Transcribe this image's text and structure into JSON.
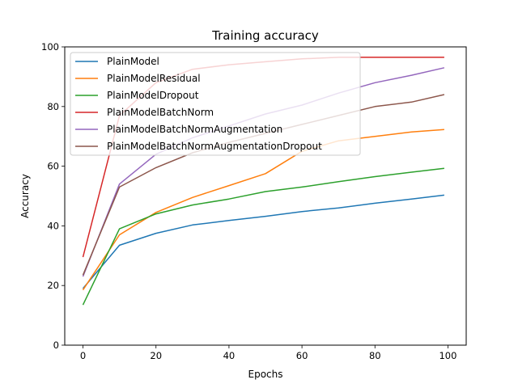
{
  "chart_data": {
    "type": "line",
    "title": "Training accuracy",
    "xlabel": "Epochs",
    "ylabel": "Accuracy",
    "xlim": [
      -5,
      105
    ],
    "ylim": [
      0,
      100
    ],
    "xticks": [
      0,
      20,
      40,
      60,
      80,
      100
    ],
    "yticks": [
      0,
      20,
      40,
      60,
      80,
      100
    ],
    "grid": false,
    "legend_position": "top-left",
    "x": [
      0,
      10,
      20,
      30,
      40,
      50,
      60,
      70,
      80,
      90,
      99
    ],
    "series": [
      {
        "name": "PlainModel",
        "color": "#1f77b4",
        "values": [
          19.0,
          33.5,
          37.5,
          40.3,
          41.8,
          43.2,
          44.8,
          46.0,
          47.6,
          49.0,
          50.3
        ]
      },
      {
        "name": "PlainModelResidual",
        "color": "#ff7f0e",
        "values": [
          18.5,
          37.0,
          44.5,
          49.5,
          53.5,
          57.5,
          65.0,
          68.5,
          70.0,
          71.5,
          72.3
        ]
      },
      {
        "name": "PlainModelDropout",
        "color": "#2ca02c",
        "values": [
          13.5,
          39.0,
          44.0,
          47.0,
          49.0,
          51.5,
          53.0,
          54.8,
          56.5,
          58.0,
          59.3
        ]
      },
      {
        "name": "PlainModelBatchNorm",
        "color": "#d62728",
        "values": [
          29.5,
          77.0,
          88.0,
          92.5,
          94.0,
          95.0,
          96.0,
          96.5,
          96.5,
          96.5,
          96.5
        ]
      },
      {
        "name": "PlainModelBatchNormAugmentation",
        "color": "#9467bd",
        "values": [
          23.0,
          54.0,
          64.0,
          69.5,
          73.5,
          77.5,
          80.5,
          84.5,
          88.0,
          90.5,
          93.0
        ]
      },
      {
        "name": "PlainModelBatchNormAugmentationDropout",
        "color": "#8c564b",
        "values": [
          23.5,
          53.0,
          59.5,
          64.5,
          68.0,
          71.0,
          74.0,
          77.0,
          80.0,
          81.5,
          84.0
        ]
      }
    ]
  }
}
